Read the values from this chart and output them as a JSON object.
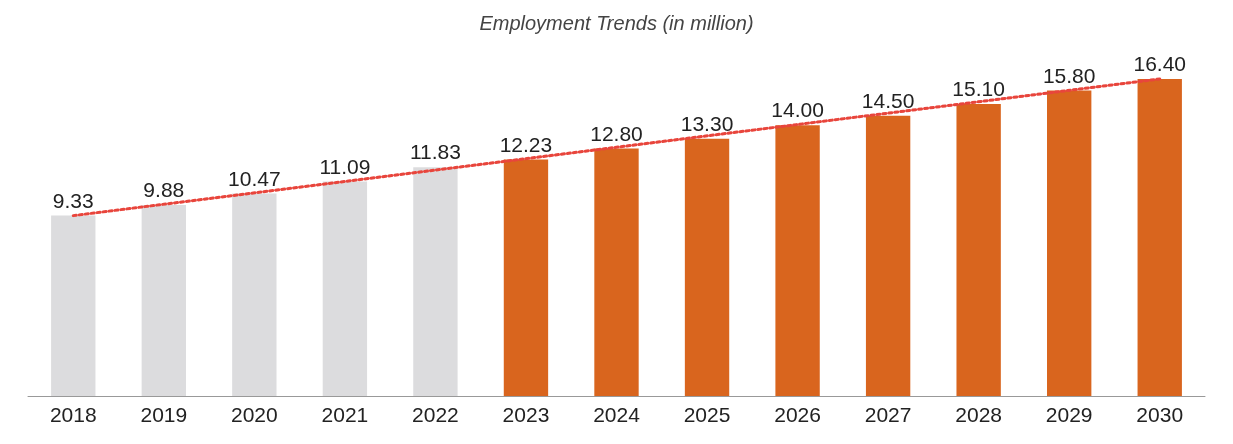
{
  "chart_data": {
    "type": "bar",
    "title": "Employment Trends (in million)",
    "categories": [
      "2018",
      "2019",
      "2020",
      "2021",
      "2022",
      "2023",
      "2024",
      "2025",
      "2026",
      "2027",
      "2028",
      "2029",
      "2030"
    ],
    "series": [
      {
        "values": [
          9.33,
          9.88,
          10.47,
          11.09,
          11.83,
          12.23,
          12.8,
          13.3,
          14.0,
          14.5,
          15.1,
          15.8,
          16.4
        ],
        "colors": [
          "#dcdcde",
          "#dcdcde",
          "#dcdcde",
          "#dcdcde",
          "#dcdcde",
          "#d9651e",
          "#d9651e",
          "#d9651e",
          "#d9651e",
          "#d9651e",
          "#d9651e",
          "#d9651e",
          "#d9651e"
        ],
        "value_labels": [
          "9.33",
          "9.88",
          "10.47",
          "11.09",
          "11.83",
          "12.23",
          "12.80",
          "13.30",
          "14.00",
          "14.50",
          "15.10",
          "15.80",
          "16.40"
        ]
      },
      {
        "type": "line",
        "values": [
          9.33,
          null,
          null,
          null,
          null,
          null,
          null,
          null,
          null,
          null,
          null,
          null,
          16.4
        ],
        "color": "#e8453c",
        "line_style": "dotted",
        "marker": "none"
      }
    ],
    "grid": false
  }
}
